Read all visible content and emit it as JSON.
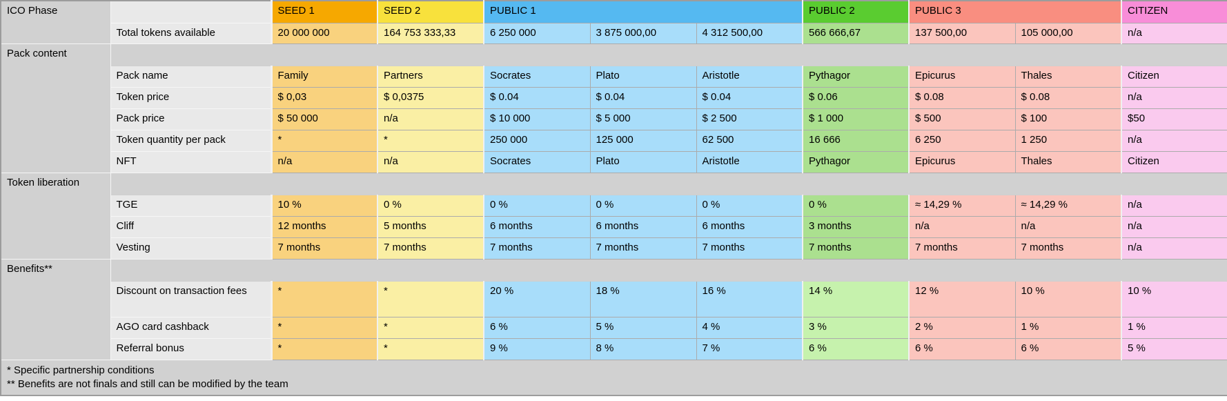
{
  "colors": {
    "section_gray": "#d1d1d1",
    "sublabel_gray": "#e9e9e9",
    "outer_border": "#9c9c9c",
    "cell_border": "#ababab"
  },
  "table": {
    "corner_label": "ICO Phase",
    "phases": [
      {
        "label": "SEED 1",
        "span": 1,
        "header_bg": "#f6a800",
        "cell_bg": "#f9d27e"
      },
      {
        "label": "SEED 2",
        "span": 1,
        "header_bg": "#f8e13c",
        "cell_bg": "#faefa4"
      },
      {
        "label": "PUBLIC 1",
        "span": 3,
        "header_bg": "#55b9f1",
        "cell_bg": "#a8ddfa"
      },
      {
        "label": "PUBLIC 2",
        "span": 1,
        "header_bg": "#5acc30",
        "cell_bg": "#abe08f",
        "benefit_cell_bg": "#c6f2ad"
      },
      {
        "label": "PUBLIC 3",
        "span": 2,
        "header_bg": "#f98e80",
        "cell_bg": "#fbc5bd"
      },
      {
        "label": "CITIZEN",
        "span": 1,
        "header_bg": "#f88dd8",
        "cell_bg": "#facaee"
      }
    ],
    "rows": [
      {
        "type": "data",
        "label": "Total tokens available",
        "values": [
          "20 000 000",
          "164 753 333,33",
          "6 250 000",
          "3 875 000,00",
          "4 312 500,00",
          "566 666,67",
          "137 500,00",
          "105 000,00",
          "n/a"
        ]
      },
      {
        "type": "section",
        "title": "Pack content"
      },
      {
        "type": "data",
        "label": "Pack name",
        "values": [
          "Family",
          "Partners",
          "Socrates",
          "Plato",
          "Aristotle",
          "Pythagor",
          "Epicurus",
          "Thales",
          "Citizen"
        ]
      },
      {
        "type": "data",
        "label": "Token price",
        "values": [
          "$ 0,03",
          "$ 0,0375",
          "$ 0.04",
          "$ 0.04",
          "$ 0.04",
          "$ 0.06",
          "$ 0.08",
          "$ 0.08",
          "n/a"
        ]
      },
      {
        "type": "data",
        "label": "Pack price",
        "values": [
          "$ 50 000",
          "n/a",
          "$ 10 000",
          "$ 5 000",
          "$ 2 500",
          "$ 1 000",
          "$ 500",
          "$ 100",
          "$50"
        ]
      },
      {
        "type": "data",
        "label": "Token quantity per pack",
        "values": [
          "*",
          "*",
          "250 000",
          "125 000",
          "62 500",
          "16 666",
          "6 250",
          "1 250",
          "n/a"
        ]
      },
      {
        "type": "data",
        "label": "NFT",
        "values": [
          "n/a",
          "n/a",
          "Socrates",
          "Plato",
          "Aristotle",
          "Pythagor",
          "Epicurus",
          "Thales",
          "Citizen"
        ]
      },
      {
        "type": "section",
        "title": "Token liberation"
      },
      {
        "type": "data",
        "label": "TGE",
        "values": [
          "10 %",
          "0 %",
          "0 %",
          "0 %",
          "0 %",
          "0 %",
          "≈ 14,29 %",
          "≈ 14,29 %",
          "n/a"
        ]
      },
      {
        "type": "data",
        "label": "Cliff",
        "values": [
          "12 months",
          "5 months",
          "6 months",
          "6 months",
          "6 months",
          "3 months",
          "n/a",
          "n/a",
          "n/a"
        ]
      },
      {
        "type": "data",
        "label": "Vesting",
        "values": [
          "7 months",
          "7 months",
          "7 months",
          "7 months",
          "7 months",
          "7 months",
          "7 months",
          "7 months",
          "n/a"
        ]
      },
      {
        "type": "section",
        "title": "Benefits**"
      },
      {
        "type": "data",
        "label": "Discount on transaction fees",
        "benefit": true,
        "tall": true,
        "values": [
          "*",
          "*",
          "20 %",
          "18 %",
          "16 %",
          "14 %",
          "12 %",
          "10 %",
          "10 %"
        ]
      },
      {
        "type": "data",
        "label": "AGO card cashback",
        "benefit": true,
        "values": [
          "*",
          "*",
          "6 %",
          "5 %",
          "4 %",
          "3 %",
          "2 %",
          "1 %",
          "1 %"
        ]
      },
      {
        "type": "data",
        "label": "Referral bonus",
        "benefit": true,
        "values": [
          "*",
          "*",
          "9 %",
          "8 %",
          "7 %",
          "6 %",
          "6 %",
          "6 %",
          "5 %"
        ]
      }
    ],
    "footnotes": [
      "* Specific partnership conditions",
      "** Benefits are not finals and still can be modified by the team"
    ]
  }
}
